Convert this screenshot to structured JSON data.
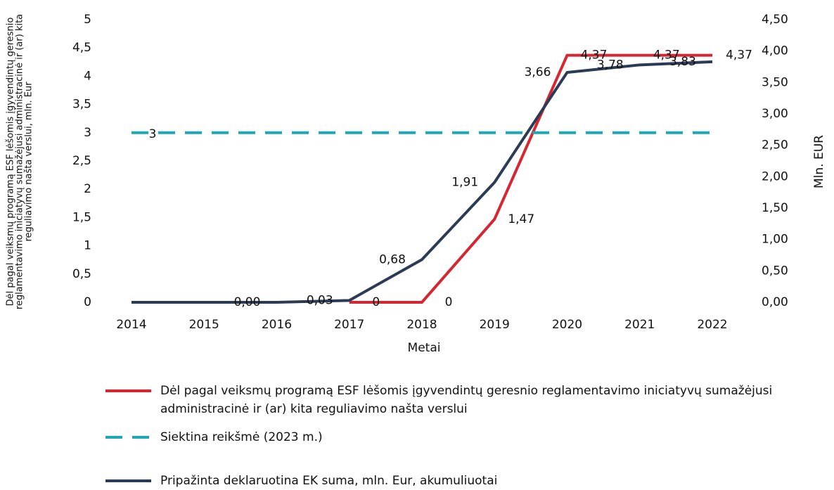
{
  "chart_data": {
    "type": "line",
    "categories": [
      "2014",
      "2015",
      "2016",
      "2017",
      "2018",
      "2019",
      "2020",
      "2021",
      "2022"
    ],
    "xlabel": "Metai",
    "ylabel": "Dėl pagal veiksmų programą ESF lėšomis įgyvendintų geresnio reglamentavimo iniciatyvų sumažėjusi administracinė ir (ar) kita reguliavimo našta verslui, mln. Eur",
    "y2label": "Mln. EUR",
    "ylim": [
      0,
      5
    ],
    "yticks": [
      0,
      {
        "value": 0.5,
        "label": "0,5"
      },
      1,
      {
        "value": 1.5,
        "label": "1,5"
      },
      2,
      {
        "value": 2.5,
        "label": "2,5"
      },
      3,
      {
        "value": 3.5,
        "label": "3,5"
      },
      4,
      {
        "value": 4.5,
        "label": "4,5"
      },
      5
    ],
    "y2lim": [
      0,
      4.5
    ],
    "y2ticks": [
      {
        "value": 0,
        "label": "0,00"
      },
      {
        "value": 0.5,
        "label": "0,50"
      },
      {
        "value": 1,
        "label": "1,00"
      },
      {
        "value": 1.5,
        "label": "1,50"
      },
      {
        "value": 2,
        "label": "2,00"
      },
      {
        "value": 2.5,
        "label": "2,50"
      },
      {
        "value": 3,
        "label": "3,00"
      },
      {
        "value": 3.5,
        "label": "3,50"
      },
      {
        "value": 4,
        "label": "4,00"
      },
      {
        "value": 4.5,
        "label": "4,50"
      }
    ],
    "grid": false,
    "series": [
      {
        "name": "Dėl pagal veiksmų programą ESF lėšomis įgyvendintų geresnio reglamentavimo iniciatyvų sumažėjusi administracinė ir (ar) kita reguliavimo našta verslui",
        "color": "#d62631",
        "dash": false,
        "values": [
          null,
          null,
          null,
          0,
          0,
          1.47,
          4.37,
          4.37,
          4.37
        ],
        "value_labels": [
          null,
          null,
          null,
          "0",
          "0",
          "1,47",
          "4,37",
          "4,37",
          "4,37"
        ]
      },
      {
        "name": "Siektina reikšmė (2023 m.)",
        "color": "#1ba8b8",
        "dash": true,
        "values": [
          3,
          3,
          3,
          3,
          3,
          3,
          3,
          3,
          3
        ],
        "value_labels": [
          "3",
          null,
          null,
          null,
          null,
          null,
          null,
          null,
          null
        ]
      },
      {
        "name": "Pripažinta deklaruotina EK suma, mln. Eur, akumuliuotai",
        "color": "#2b3a55",
        "dash": false,
        "axis": "y2",
        "values": [
          0,
          0,
          0,
          0.03,
          0.68,
          1.91,
          3.66,
          3.78,
          3.83
        ],
        "value_labels": [
          null,
          null,
          "0,00",
          "0,03",
          "0,68",
          "1,91",
          "3,66",
          "3,78",
          "3,83"
        ]
      }
    ]
  }
}
